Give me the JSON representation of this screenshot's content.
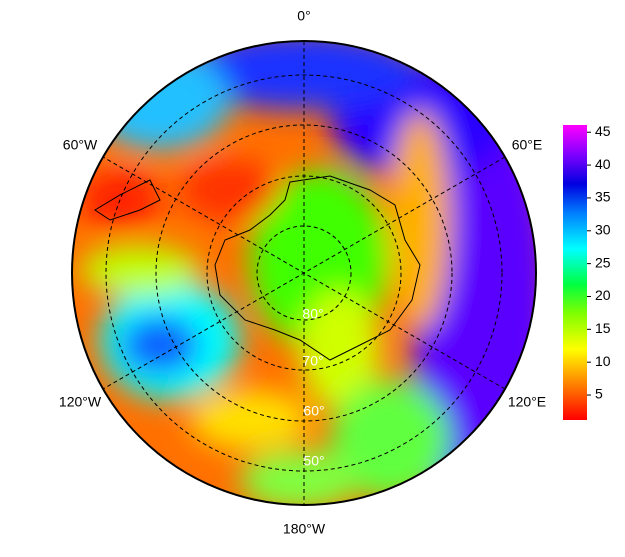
{
  "map": {
    "lon_labels": [
      "0°",
      "60°E",
      "120°E",
      "180°W",
      "120°W",
      "60°W"
    ],
    "lat_labels": [
      "80°",
      "70°",
      "60°",
      "50°"
    ],
    "colorbar": {
      "clim": [
        1.2,
        46.1
      ],
      "ticks": [
        5,
        10,
        15,
        20,
        25,
        30,
        35,
        40,
        45
      ]
    }
  }
}
